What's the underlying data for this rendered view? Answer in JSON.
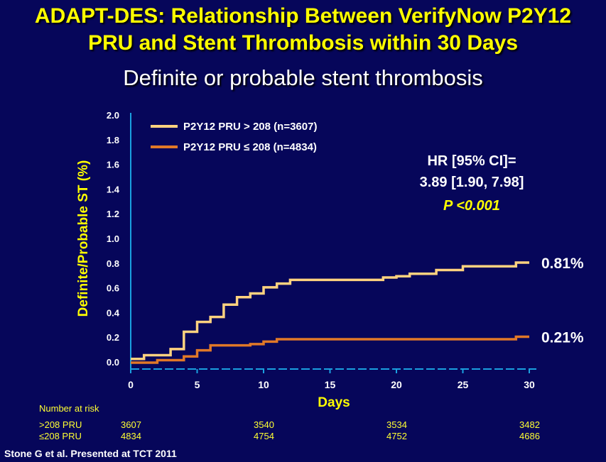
{
  "title_line1": "ADAPT-DES: Relationship Between VerifyNow P2Y12",
  "title_line2": "PRU and Stent Thrombosis within 30 Days",
  "subtitle": "Definite or probable stent thrombosis",
  "annotation": {
    "hr_label": "HR [95% CI]=",
    "hr_value": "3.89 [1.90, 7.98]",
    "p_value": "P <0.001"
  },
  "end_labels": [
    "0.81%",
    "0.21%"
  ],
  "colors": {
    "high": "#ffd27f",
    "low": "#e07828",
    "axis": "#1aa0e0",
    "text": "#ffff00"
  },
  "chart_data": {
    "type": "line",
    "xlabel": "Days",
    "ylabel": "Definite/Probable ST (%)",
    "xlim": [
      0,
      30
    ],
    "ylim": [
      0,
      2.0
    ],
    "xticks": [
      0,
      5,
      10,
      15,
      20,
      25,
      30
    ],
    "yticks": [
      "0.0",
      "0.2",
      "0.4",
      "0.6",
      "0.8",
      "1.0",
      "1.2",
      "1.4",
      "1.6",
      "1.8",
      "2.0"
    ],
    "legend_position": "top-left",
    "series": [
      {
        "name": "P2Y12 PRU > 208 (n=3607)",
        "x": [
          0,
          1,
          3,
          4,
          5,
          6,
          7,
          8,
          9,
          10,
          11,
          12,
          19,
          20,
          21,
          23,
          25,
          26,
          29,
          30
        ],
        "y": [
          0.03,
          0.06,
          0.11,
          0.25,
          0.33,
          0.37,
          0.47,
          0.53,
          0.56,
          0.61,
          0.64,
          0.67,
          0.69,
          0.7,
          0.72,
          0.75,
          0.78,
          0.78,
          0.81,
          0.81
        ]
      },
      {
        "name": "P2Y12 PRU ≤ 208 (n=4834)",
        "x": [
          0,
          2,
          4,
          5,
          6,
          9,
          10,
          11,
          28,
          29,
          30
        ],
        "y": [
          0.0,
          0.02,
          0.05,
          0.1,
          0.14,
          0.15,
          0.17,
          0.19,
          0.19,
          0.21,
          0.21
        ]
      }
    ]
  },
  "risk_table": {
    "header": "Number at risk",
    "rows": [
      {
        "label": ">208 PRU",
        "values": [
          "3607",
          "3540",
          "3534",
          "3482"
        ]
      },
      {
        "label": "≤208 PRU",
        "values": [
          "4834",
          "4754",
          "4752",
          "4686"
        ]
      }
    ]
  },
  "footer": "Stone G et al. Presented at TCT 2011"
}
